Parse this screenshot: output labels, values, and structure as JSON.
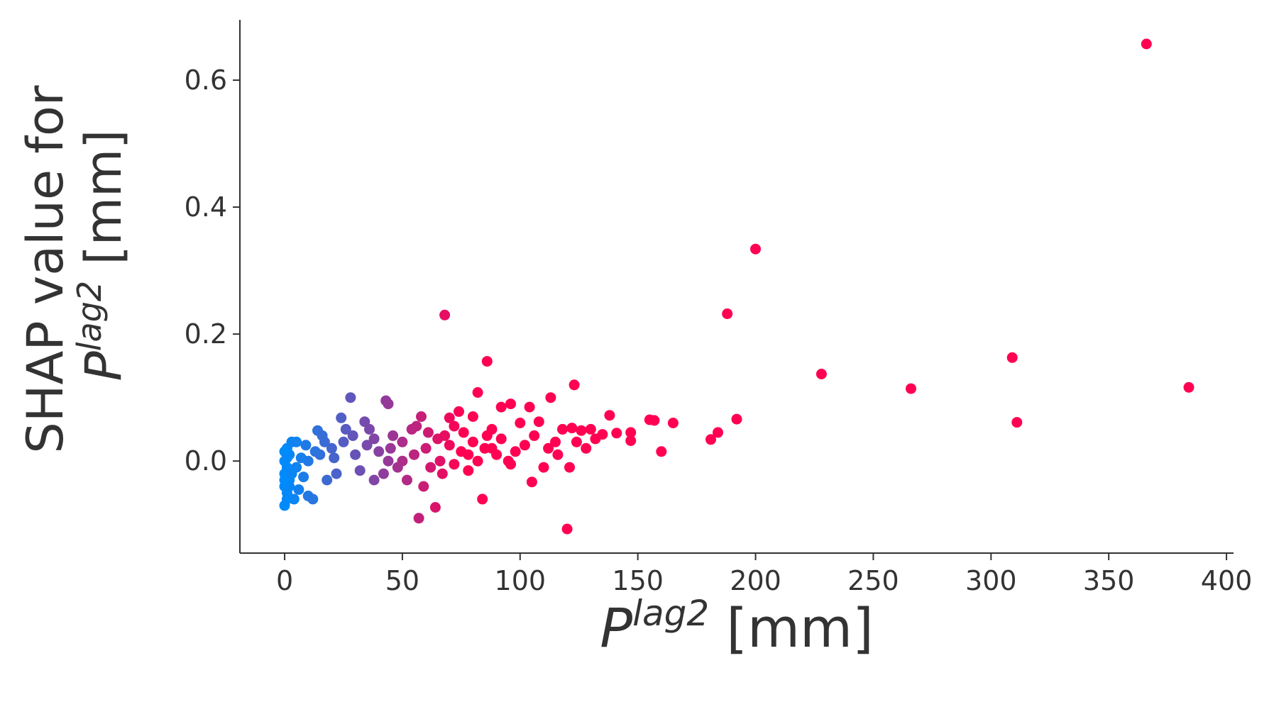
{
  "chart_data": {
    "type": "scatter",
    "title": "",
    "xlabel": {
      "base": "P",
      "sup": "lag2",
      "unit": " [mm]"
    },
    "ylabel": {
      "line1": "SHAP value for",
      "base": "P",
      "sup": "lag2",
      "unit": " [mm]"
    },
    "xlim": [
      -19,
      403
    ],
    "ylim": [
      -0.145,
      0.695
    ],
    "xticks": [
      0,
      50,
      100,
      150,
      200,
      250,
      300,
      350,
      400
    ],
    "xtick_labels": [
      "0",
      "50",
      "100",
      "150",
      "200",
      "250",
      "300",
      "350",
      "400"
    ],
    "yticks": [
      0.0,
      0.2,
      0.4,
      0.6
    ],
    "ytick_labels": [
      "0.0",
      "0.2",
      "0.4",
      "0.6"
    ],
    "grid": false,
    "legend": "none",
    "color_scale": {
      "low": "#008bfb",
      "high": "#ff0052",
      "domain": [
        0,
        75
      ]
    },
    "points": [
      [
        366,
        0.657
      ],
      [
        200,
        0.334
      ],
      [
        68,
        0.23
      ],
      [
        188,
        0.232
      ],
      [
        86,
        0.157
      ],
      [
        309,
        0.163
      ],
      [
        228,
        0.137
      ],
      [
        384,
        0.116
      ],
      [
        266,
        0.114
      ],
      [
        311,
        0.061
      ],
      [
        123,
        0.12
      ],
      [
        82,
        0.108
      ],
      [
        113,
        0.1
      ],
      [
        28,
        0.1
      ],
      [
        43,
        0.095
      ],
      [
        44,
        0.09
      ],
      [
        192,
        0.066
      ],
      [
        155,
        0.065
      ],
      [
        157,
        0.064
      ],
      [
        165,
        0.06
      ],
      [
        184,
        0.045
      ],
      [
        181,
        0.034
      ],
      [
        160,
        0.015
      ],
      [
        138,
        0.072
      ],
      [
        147,
        0.045
      ],
      [
        147,
        0.032
      ],
      [
        141,
        0.044
      ],
      [
        135,
        0.042
      ],
      [
        130,
        0.05
      ],
      [
        126,
        0.048
      ],
      [
        122,
        0.052
      ],
      [
        118,
        0.05
      ],
      [
        115,
        0.03
      ],
      [
        108,
        0.062
      ],
      [
        104,
        0.085
      ],
      [
        100,
        0.06
      ],
      [
        96,
        0.09
      ],
      [
        92,
        0.085
      ],
      [
        88,
        0.05
      ],
      [
        80,
        0.07
      ],
      [
        74,
        0.078
      ],
      [
        70,
        0.068
      ],
      [
        58,
        0.07
      ],
      [
        120,
        -0.107
      ],
      [
        57,
        -0.09
      ],
      [
        64,
        -0.073
      ],
      [
        84,
        -0.06
      ],
      [
        59,
        -0.04
      ],
      [
        105,
        -0.033
      ],
      [
        110,
        -0.01
      ],
      [
        121,
        -0.01
      ],
      [
        95,
        0.0
      ],
      [
        90,
        0.01
      ],
      [
        85,
        0.02
      ],
      [
        80,
        0.03
      ],
      [
        75,
        0.015
      ],
      [
        70,
        0.025
      ],
      [
        65,
        0.035
      ],
      [
        60,
        0.02
      ],
      [
        55,
        0.01
      ],
      [
        50,
        0.03
      ],
      [
        45,
        0.02
      ],
      [
        40,
        0.015
      ],
      [
        35,
        0.025
      ],
      [
        30,
        0.01
      ],
      [
        25,
        0.03
      ],
      [
        20,
        0.02
      ],
      [
        15,
        0.01
      ],
      [
        10,
        0.0
      ],
      [
        5,
        -0.01
      ],
      [
        0,
        -0.07
      ],
      [
        1,
        -0.05
      ],
      [
        0,
        -0.04
      ],
      [
        2,
        -0.03
      ],
      [
        0,
        -0.02
      ],
      [
        1,
        -0.01
      ],
      [
        0,
        0.0
      ],
      [
        2,
        0.01
      ],
      [
        1,
        0.02
      ],
      [
        0,
        0.015
      ],
      [
        3,
        0.03
      ],
      [
        4,
        -0.06
      ],
      [
        6,
        -0.045
      ],
      [
        8,
        -0.025
      ],
      [
        10,
        -0.055
      ],
      [
        12,
        -0.06
      ],
      [
        14,
        0.048
      ],
      [
        16,
        0.04
      ],
      [
        18,
        -0.03
      ],
      [
        22,
        -0.02
      ],
      [
        24,
        0.068
      ],
      [
        26,
        0.05
      ],
      [
        32,
        -0.015
      ],
      [
        34,
        0.062
      ],
      [
        36,
        0.05
      ],
      [
        38,
        -0.03
      ],
      [
        42,
        -0.02
      ],
      [
        46,
        0.04
      ],
      [
        48,
        -0.01
      ],
      [
        52,
        -0.03
      ],
      [
        54,
        0.05
      ],
      [
        56,
        0.055
      ],
      [
        62,
        -0.01
      ],
      [
        66,
        0.0
      ],
      [
        68,
        0.04
      ],
      [
        72,
        0.055
      ],
      [
        76,
        0.045
      ],
      [
        78,
        0.01
      ],
      [
        82,
        0.0
      ],
      [
        86,
        0.04
      ],
      [
        88,
        0.02
      ],
      [
        92,
        0.035
      ],
      [
        98,
        0.015
      ],
      [
        102,
        0.025
      ],
      [
        106,
        0.04
      ],
      [
        112,
        0.02
      ],
      [
        116,
        0.01
      ],
      [
        124,
        0.03
      ],
      [
        128,
        0.02
      ],
      [
        132,
        0.035
      ],
      [
        96,
        -0.005
      ],
      [
        78,
        -0.015
      ],
      [
        67,
        -0.02
      ],
      [
        72,
        -0.005
      ],
      [
        61,
        0.045
      ],
      [
        50,
        0.0
      ],
      [
        44,
        0.0
      ],
      [
        38,
        0.035
      ],
      [
        29,
        0.04
      ],
      [
        21,
        0.005
      ],
      [
        17,
        0.03
      ],
      [
        13,
        0.015
      ],
      [
        9,
        0.025
      ],
      [
        7,
        0.005
      ],
      [
        5,
        0.03
      ],
      [
        3,
        -0.02
      ],
      [
        2,
        -0.04
      ],
      [
        1,
        0.005
      ],
      [
        0,
        -0.03
      ],
      [
        1,
        -0.06
      ]
    ]
  }
}
